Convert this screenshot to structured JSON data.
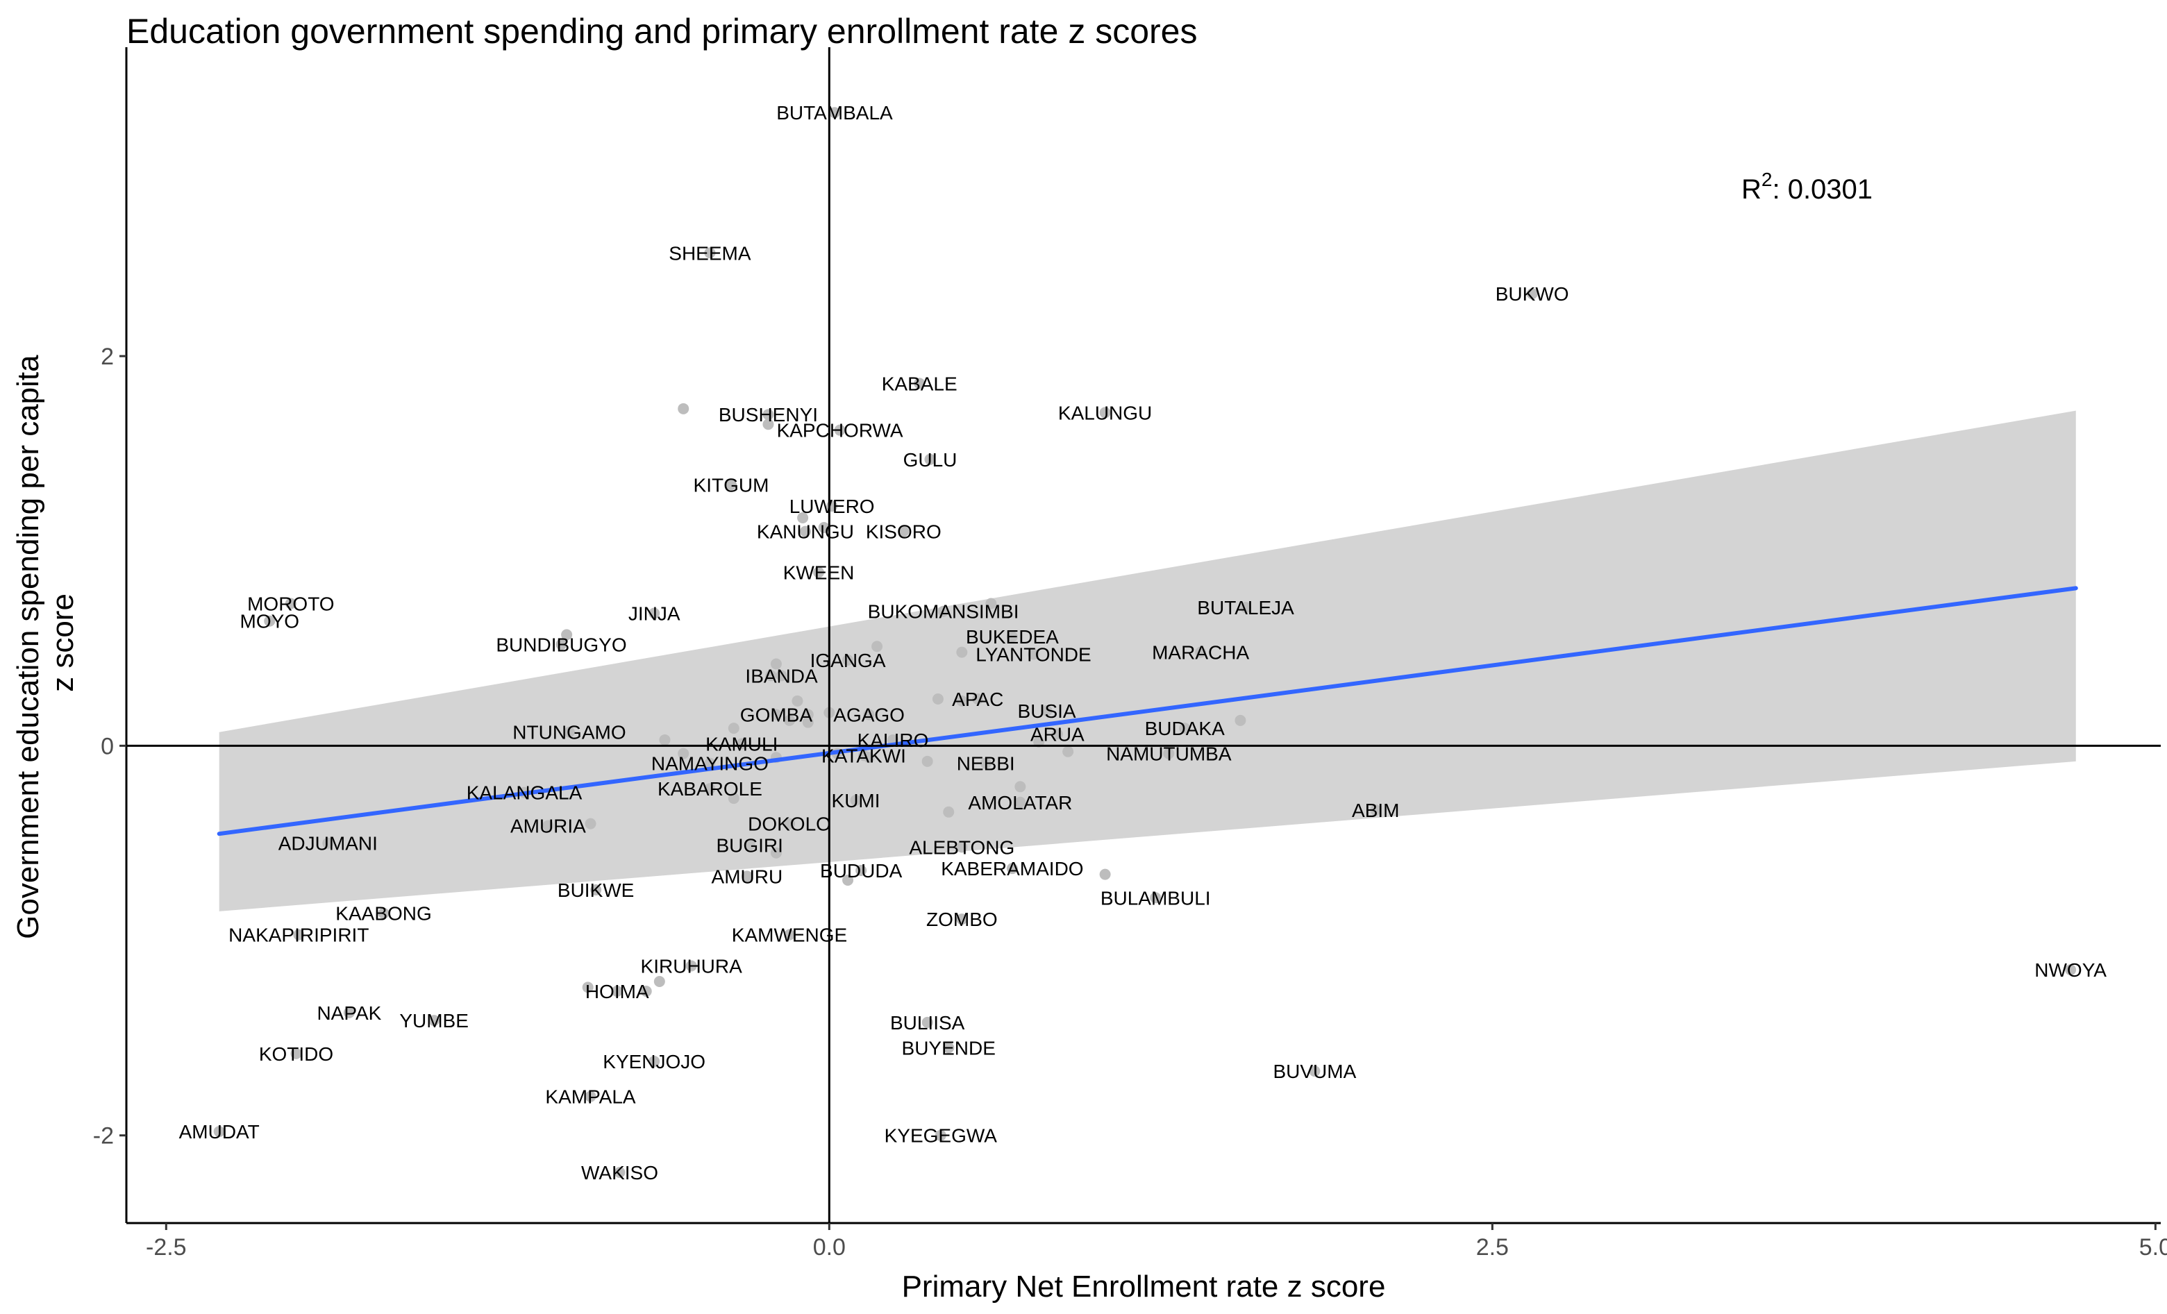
{
  "chart_data": {
    "type": "scatter",
    "title": "Education government spending and primary enrollment rate z scores",
    "xlabel": "Primary Net Enrollment rate z score",
    "ylabel_lines": [
      "Government education spending per capita",
      "z score"
    ],
    "xlim": [
      -2.65,
      5.02
    ],
    "ylim": [
      -2.45,
      3.55
    ],
    "x_ticks": [
      {
        "value": -2.5,
        "label": "-2.5"
      },
      {
        "value": 0,
        "label": "0.0"
      },
      {
        "value": 2.5,
        "label": "2.5"
      },
      {
        "value": 5,
        "label": "5.0"
      }
    ],
    "y_ticks": [
      {
        "value": -2,
        "label": "-2"
      },
      {
        "value": 0,
        "label": "0"
      },
      {
        "value": 2,
        "label": "2"
      }
    ],
    "reference_lines": {
      "x": 0,
      "y": 0
    },
    "annotation": {
      "base": "R",
      "sup": "2",
      "rest": ": 0.0301"
    },
    "fit": {
      "x_range": [
        -2.3,
        4.7
      ],
      "intercept": -0.0376,
      "slope": 0.1801,
      "ci_start": [
        -0.85,
        0.07
      ],
      "ci_end": [
        -0.08,
        1.72
      ],
      "line_color": "#3366ff",
      "band_color": "#d4d4d4"
    },
    "point_color": "#bdbdbd",
    "points": [
      {
        "label": "BUTAMBALA",
        "x": 0.02,
        "y": 3.25
      },
      {
        "label": "SHEEMA",
        "x": -0.45,
        "y": 2.53
      },
      {
        "label": "BUKWO",
        "x": 2.65,
        "y": 2.32
      },
      {
        "label": "KABALE",
        "x": 0.34,
        "y": 1.86
      },
      {
        "label": "BUSHENYI",
        "x": -0.23,
        "y": 1.7
      },
      {
        "label": "KALUNGU",
        "x": 1.04,
        "y": 1.71
      },
      {
        "label": "KAPCHORWA",
        "x": 0.04,
        "y": 1.62
      },
      {
        "label": "GULU",
        "x": 0.38,
        "y": 1.47
      },
      {
        "label": "KITGUM",
        "x": -0.37,
        "y": 1.34
      },
      {
        "label": "LUWERO",
        "x": 0.01,
        "y": 1.23
      },
      {
        "label": "KANUNGU",
        "x": -0.09,
        "y": 1.1
      },
      {
        "label": "KISORO",
        "x": 0.28,
        "y": 1.1
      },
      {
        "label": "KWEEN",
        "x": -0.04,
        "y": 0.89
      },
      {
        "label": "MOROTO",
        "x": -2.03,
        "y": 0.73
      },
      {
        "label": "MOYO",
        "x": -2.11,
        "y": 0.64
      },
      {
        "label": "BUKOMANSIMBI",
        "x": 0.43,
        "y": 0.69
      },
      {
        "label": "BUTALEJA",
        "x": 1.57,
        "y": 0.71
      },
      {
        "label": "JINJA",
        "x": -0.66,
        "y": 0.68
      },
      {
        "label": "BUNDIBUGYO",
        "x": -1.01,
        "y": 0.52
      },
      {
        "label": "BUKEDEA",
        "x": 0.69,
        "y": 0.56
      },
      {
        "label": "LYANTONDE",
        "x": 0.77,
        "y": 0.47
      },
      {
        "label": "MARACHA",
        "x": 1.4,
        "y": 0.48
      },
      {
        "label": "IGANGA",
        "x": 0.07,
        "y": 0.44
      },
      {
        "label": "IBANDA",
        "x": -0.18,
        "y": 0.36
      },
      {
        "label": "APAC",
        "x": 0.56,
        "y": 0.24
      },
      {
        "label": "GOMBA",
        "x": -0.2,
        "y": 0.16
      },
      {
        "label": "AGAGO",
        "x": 0.15,
        "y": 0.16
      },
      {
        "label": "BUSIA",
        "x": 0.82,
        "y": 0.18
      },
      {
        "label": "NTUNGAMO",
        "x": -0.98,
        "y": 0.07
      },
      {
        "label": "ARUA",
        "x": 0.86,
        "y": 0.06
      },
      {
        "label": "BUDAKA",
        "x": 1.34,
        "y": 0.09
      },
      {
        "label": "KALIRO",
        "x": 0.24,
        "y": 0.03
      },
      {
        "label": "KAMULI",
        "x": -0.33,
        "y": 0.01
      },
      {
        "label": "KATAKWI",
        "x": 0.13,
        "y": -0.05
      },
      {
        "label": "NAMAYINGO",
        "x": -0.45,
        "y": -0.09
      },
      {
        "label": "NEBBI",
        "x": 0.59,
        "y": -0.09
      },
      {
        "label": "NAMUTUMBA",
        "x": 1.28,
        "y": -0.04
      },
      {
        "label": "KALANGALA",
        "x": -1.15,
        "y": -0.24
      },
      {
        "label": "KABAROLE",
        "x": -0.45,
        "y": -0.22
      },
      {
        "label": "KUMI",
        "x": 0.1,
        "y": -0.28
      },
      {
        "label": "AMOLATAR",
        "x": 0.72,
        "y": -0.29
      },
      {
        "label": "ABIM",
        "x": 2.06,
        "y": -0.33
      },
      {
        "label": "AMURIA",
        "x": -1.06,
        "y": -0.41
      },
      {
        "label": "DOKOLO",
        "x": -0.15,
        "y": -0.4
      },
      {
        "label": "ADJUMANI",
        "x": -1.89,
        "y": -0.5
      },
      {
        "label": "BUGIRI",
        "x": -0.3,
        "y": -0.51
      },
      {
        "label": "ALEBTONG",
        "x": 0.5,
        "y": -0.52
      },
      {
        "label": "KABERAMAIDO",
        "x": 0.69,
        "y": -0.63
      },
      {
        "label": "BUDUDA",
        "x": 0.12,
        "y": -0.64
      },
      {
        "label": "AMURU",
        "x": -0.31,
        "y": -0.67
      },
      {
        "label": "BUIKWE",
        "x": -0.88,
        "y": -0.74
      },
      {
        "label": "BULAMBULI",
        "x": 1.23,
        "y": -0.78
      },
      {
        "label": "KAABONG",
        "x": -1.68,
        "y": -0.86
      },
      {
        "label": "ZOMBO",
        "x": 0.5,
        "y": -0.89
      },
      {
        "label": "NAKAPIRIPIRIT",
        "x": -2.0,
        "y": -0.97
      },
      {
        "label": "KAMWENGE",
        "x": -0.15,
        "y": -0.97
      },
      {
        "label": "KIRUHURA",
        "x": -0.52,
        "y": -1.13
      },
      {
        "label": "NWOYA",
        "x": 4.68,
        "y": -1.15
      },
      {
        "label": "HOIMA",
        "x": -0.8,
        "y": -1.26
      },
      {
        "label": "NAPAK",
        "x": -1.81,
        "y": -1.37
      },
      {
        "label": "YUMBE",
        "x": -1.49,
        "y": -1.41
      },
      {
        "label": "BULIISA",
        "x": 0.37,
        "y": -1.42
      },
      {
        "label": "BUYENDE",
        "x": 0.45,
        "y": -1.55
      },
      {
        "label": "KOTIDO",
        "x": -2.01,
        "y": -1.58
      },
      {
        "label": "KYENJOJO",
        "x": -0.66,
        "y": -1.62
      },
      {
        "label": "BUVUMA",
        "x": 1.83,
        "y": -1.67
      },
      {
        "label": "KAMPALA",
        "x": -0.9,
        "y": -1.8
      },
      {
        "label": "AMUDAT",
        "x": -2.3,
        "y": -1.98
      },
      {
        "label": "KYEGEGWA",
        "x": 0.42,
        "y": -2.0
      },
      {
        "label": "WAKISO",
        "x": -0.79,
        "y": -2.19
      },
      {
        "x": -0.55,
        "y": 1.73
      },
      {
        "x": -0.23,
        "y": 1.65
      },
      {
        "x": -0.1,
        "y": 1.17
      },
      {
        "x": -0.02,
        "y": 1.12
      },
      {
        "x": -0.99,
        "y": 0.57
      },
      {
        "x": 0.18,
        "y": 0.51
      },
      {
        "x": -0.2,
        "y": 0.42
      },
      {
        "x": -0.22,
        "y": 0.36
      },
      {
        "x": -0.12,
        "y": 0.23
      },
      {
        "x": 0.41,
        "y": 0.24
      },
      {
        "x": 0.5,
        "y": 0.23
      },
      {
        "x": 0.61,
        "y": 0.73
      },
      {
        "x": 0.5,
        "y": 0.48
      },
      {
        "x": -0.08,
        "y": 0.16
      },
      {
        "x": 0.0,
        "y": 0.17
      },
      {
        "x": -0.08,
        "y": 0.12
      },
      {
        "x": -0.15,
        "y": 0.13
      },
      {
        "x": -0.36,
        "y": 0.09
      },
      {
        "x": -0.62,
        "y": 0.03
      },
      {
        "x": -0.55,
        "y": -0.04
      },
      {
        "x": -0.2,
        "y": -0.06
      },
      {
        "x": 0.03,
        "y": -0.04
      },
      {
        "x": 0.15,
        "y": -0.06
      },
      {
        "x": 0.37,
        "y": -0.08
      },
      {
        "x": 0.79,
        "y": 0.02
      },
      {
        "x": 0.9,
        "y": -0.03
      },
      {
        "x": 1.55,
        "y": 0.13
      },
      {
        "x": 0.72,
        "y": -0.21
      },
      {
        "x": -0.36,
        "y": -0.27
      },
      {
        "x": 0.45,
        "y": -0.34
      },
      {
        "x": -0.9,
        "y": -0.4
      },
      {
        "x": -0.2,
        "y": -0.55
      },
      {
        "x": 0.07,
        "y": -0.69
      },
      {
        "x": 1.04,
        "y": -0.66
      },
      {
        "x": -0.64,
        "y": -1.21
      },
      {
        "x": -0.69,
        "y": -1.26
      },
      {
        "x": -0.91,
        "y": -1.24
      }
    ]
  }
}
